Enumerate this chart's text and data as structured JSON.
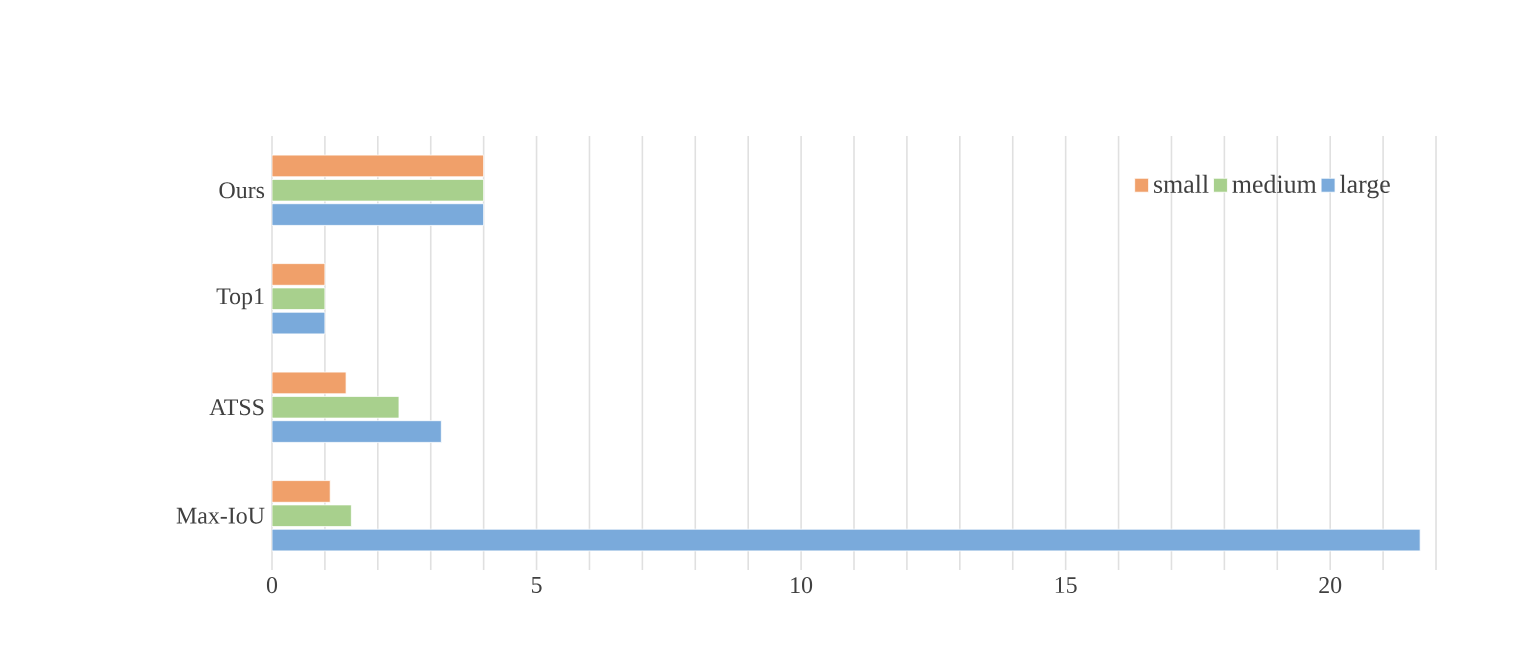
{
  "chart_data": {
    "type": "bar",
    "orientation": "horizontal",
    "categories": [
      "Ours",
      "Top1",
      "ATSS",
      "Max-IoU"
    ],
    "series": [
      {
        "name": "small",
        "color": "#f0a06a",
        "values": [
          4,
          1,
          1.4,
          1.1
        ]
      },
      {
        "name": "medium",
        "color": "#a8d08d",
        "values": [
          4,
          1,
          2.4,
          1.5
        ]
      },
      {
        "name": "large",
        "color": "#7aaadb",
        "values": [
          4,
          1,
          3.2,
          21.7
        ]
      }
    ],
    "xlim": [
      0,
      22
    ],
    "xticks": [
      0,
      {
        "value": 1,
        "label": null
      },
      {
        "value": 2,
        "label": null
      },
      {
        "value": 3,
        "label": null
      },
      {
        "value": 4,
        "label": null
      },
      5,
      {
        "value": 6,
        "label": null
      },
      {
        "value": 7,
        "label": null
      },
      {
        "value": 8,
        "label": null
      },
      {
        "value": 9,
        "label": null
      },
      10,
      {
        "value": 11,
        "label": null
      },
      {
        "value": 12,
        "label": null
      },
      {
        "value": 13,
        "label": null
      },
      {
        "value": 14,
        "label": null
      },
      15,
      {
        "value": 16,
        "label": null
      },
      {
        "value": 17,
        "label": null
      },
      {
        "value": 18,
        "label": null
      },
      {
        "value": 19,
        "label": null
      },
      20,
      {
        "value": 21,
        "label": null
      },
      {
        "value": 22,
        "label": null
      }
    ],
    "grid": "x",
    "legend": "top right"
  }
}
